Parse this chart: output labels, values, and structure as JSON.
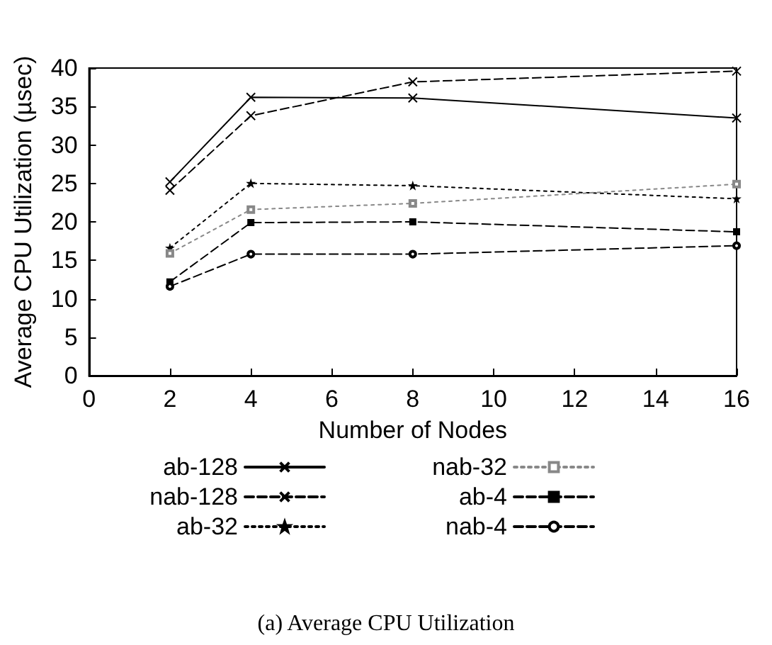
{
  "chart_data": {
    "type": "line",
    "title": "(a) Average CPU Utilization",
    "xlabel": "Number of Nodes",
    "ylabel": "Average CPU Utilization (µsec)",
    "x": [
      2,
      4,
      8,
      16
    ],
    "xlim": [
      0,
      16
    ],
    "xticks": [
      0,
      2,
      4,
      6,
      8,
      10,
      12,
      14,
      16
    ],
    "ylim": [
      0,
      40
    ],
    "yticks": [
      0,
      5,
      10,
      15,
      20,
      25,
      30,
      35,
      40
    ],
    "grid": false,
    "legend": "bottom",
    "series": [
      {
        "name": "ab-128",
        "color": "#000000",
        "marker": "cross",
        "line_style": "solid",
        "values": [
          25.2,
          36.2,
          36.1,
          33.5
        ]
      },
      {
        "name": "nab-128",
        "color": "#000000",
        "marker": "cross",
        "line_style": "dashed",
        "values": [
          24.1,
          33.8,
          38.2,
          39.6
        ]
      },
      {
        "name": "ab-32",
        "color": "#000000",
        "marker": "star",
        "line_style": "dotted",
        "values": [
          16.6,
          25.0,
          24.7,
          23.0
        ]
      },
      {
        "name": "nab-32",
        "color": "#888888",
        "marker": "square",
        "line_style": "dotted",
        "values": [
          15.9,
          21.6,
          22.4,
          24.9
        ]
      },
      {
        "name": "ab-4",
        "color": "#000000",
        "marker": "square",
        "line_style": "dashed",
        "values": [
          12.2,
          19.9,
          20.0,
          18.7
        ]
      },
      {
        "name": "nab-4",
        "color": "#000000",
        "marker": "circle",
        "line_style": "dashed",
        "values": [
          11.6,
          15.8,
          15.8,
          16.9
        ]
      }
    ]
  }
}
